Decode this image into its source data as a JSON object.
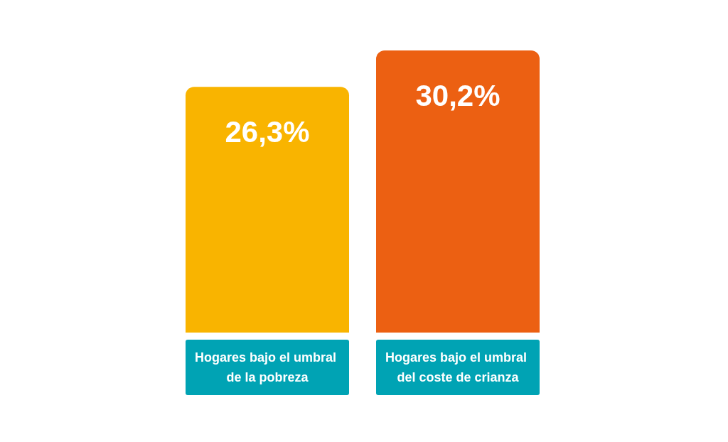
{
  "chart_data": {
    "type": "bar",
    "categories": [
      "Hogares bajo el umbral de la pobreza",
      "Hogares bajo el umbral del coste de crianza"
    ],
    "values": [
      26.3,
      30.2
    ],
    "colors": [
      "#f9b400",
      "#ec6012"
    ],
    "value_labels": [
      "26,3%",
      "30,2%"
    ]
  }
}
